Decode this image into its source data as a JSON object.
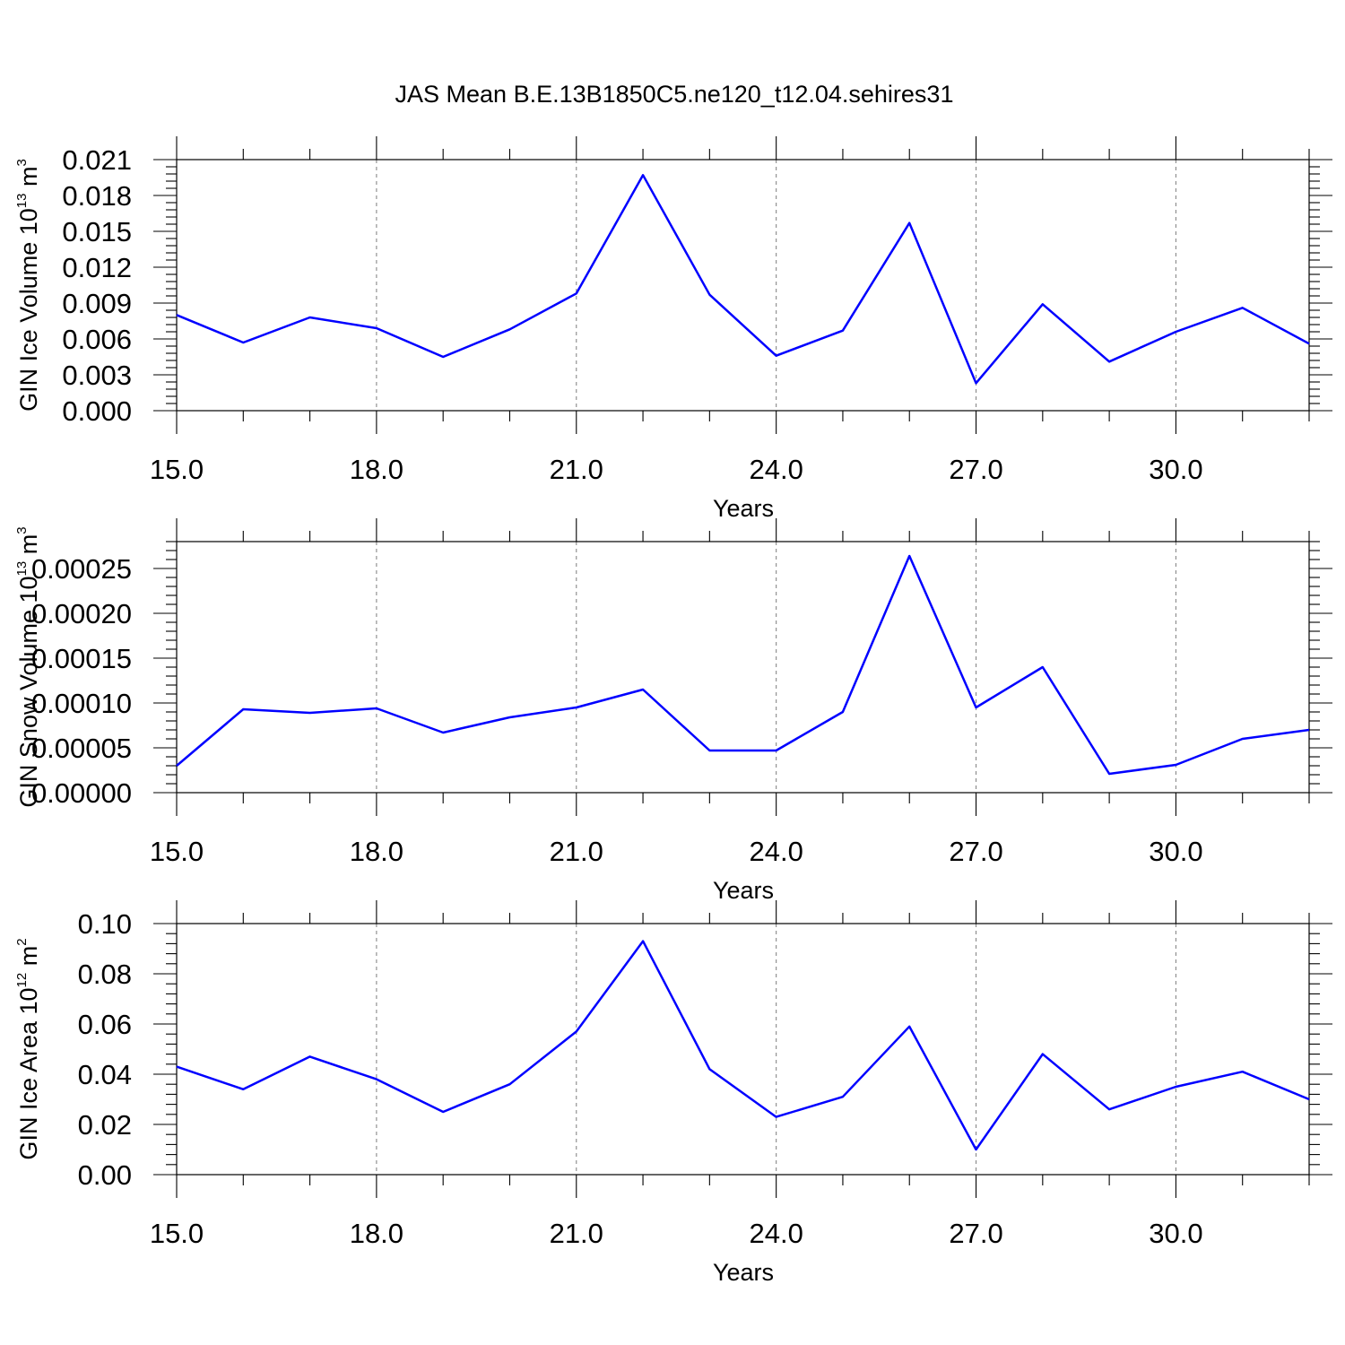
{
  "title": "JAS Mean B.E.13B1850C5.ne120_t12.04.sehires31",
  "chart_data": [
    {
      "type": "line",
      "ylabel": "GIN Ice Volume 10",
      "ylabel_sup": "13",
      "ylabel_unit": "m",
      "ylabel_unit_sup": "3",
      "xlabel": "Years",
      "xlim": [
        15,
        32
      ],
      "xticks": [
        "15.0",
        "18.0",
        "21.0",
        "24.0",
        "27.0",
        "30.0"
      ],
      "ylim": [
        0,
        0.021
      ],
      "yticks": [
        "0.000",
        "0.003",
        "0.006",
        "0.009",
        "0.012",
        "0.015",
        "0.018",
        "0.021"
      ],
      "x": [
        15,
        16,
        17,
        18,
        19,
        20,
        21,
        22,
        23,
        24,
        25,
        26,
        27,
        28,
        29,
        30,
        31,
        32
      ],
      "series": [
        {
          "values": [
            0.008,
            0.0057,
            0.0078,
            0.0069,
            0.0045,
            0.0068,
            0.0098,
            0.0197,
            0.0097,
            0.0046,
            0.0067,
            0.0157,
            0.0023,
            0.0089,
            0.0041,
            0.0066,
            0.0086,
            0.0056
          ]
        }
      ]
    },
    {
      "type": "line",
      "ylabel": "GIN Snow Volume 10",
      "ylabel_sup": "13",
      "ylabel_unit": "m",
      "ylabel_unit_sup": "3",
      "xlabel": "Years",
      "xlim": [
        15,
        32
      ],
      "xticks": [
        "15.0",
        "18.0",
        "21.0",
        "24.0",
        "27.0",
        "30.0"
      ],
      "ylim": [
        0,
        0.00028
      ],
      "yticks": [
        "0.00000",
        "0.00005",
        "0.00010",
        "0.00015",
        "0.00020",
        "0.00025"
      ],
      "x": [
        15,
        16,
        17,
        18,
        19,
        20,
        21,
        22,
        23,
        24,
        25,
        26,
        27,
        28,
        29,
        30,
        31,
        32
      ],
      "series": [
        {
          "values": [
            3e-05,
            9.3e-05,
            8.9e-05,
            9.4e-05,
            6.7e-05,
            8.4e-05,
            9.5e-05,
            0.000115,
            4.7e-05,
            4.7e-05,
            9e-05,
            0.000264,
            9.5e-05,
            0.00014,
            2.1e-05,
            3.1e-05,
            6e-05,
            7e-05
          ]
        }
      ]
    },
    {
      "type": "line",
      "ylabel": "GIN Ice Area 10",
      "ylabel_sup": "12",
      "ylabel_unit": "m",
      "ylabel_unit_sup": "2",
      "xlabel": "Years",
      "xlim": [
        15,
        32
      ],
      "xticks": [
        "15.0",
        "18.0",
        "21.0",
        "24.0",
        "27.0",
        "30.0"
      ],
      "ylim": [
        0,
        0.1
      ],
      "yticks": [
        "0.00",
        "0.02",
        "0.04",
        "0.06",
        "0.08",
        "0.10"
      ],
      "x": [
        15,
        16,
        17,
        18,
        19,
        20,
        21,
        22,
        23,
        24,
        25,
        26,
        27,
        28,
        29,
        30,
        31,
        32
      ],
      "series": [
        {
          "values": [
            0.043,
            0.034,
            0.047,
            0.038,
            0.025,
            0.036,
            0.057,
            0.093,
            0.042,
            0.023,
            0.031,
            0.059,
            0.01,
            0.048,
            0.026,
            0.035,
            0.041,
            0.03
          ]
        }
      ]
    }
  ]
}
